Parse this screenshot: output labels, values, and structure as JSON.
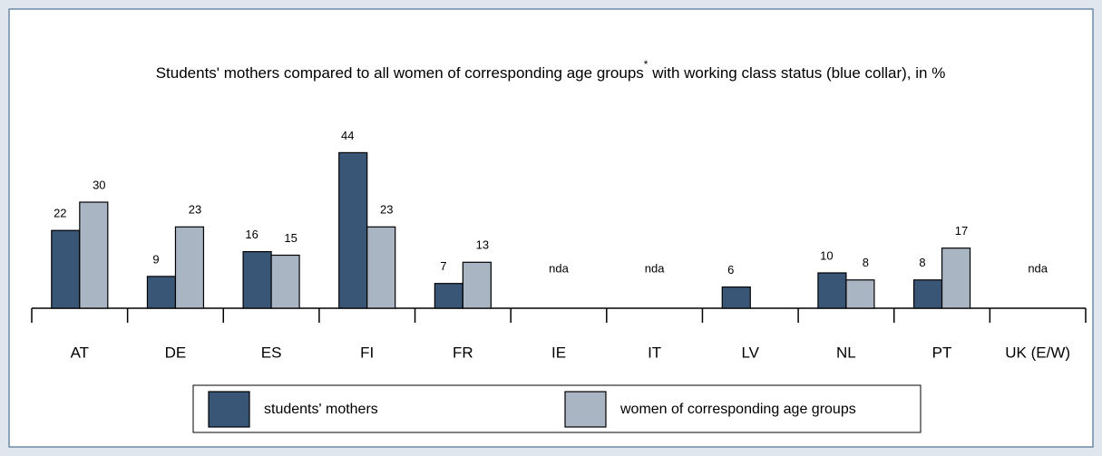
{
  "chart_data": {
    "type": "bar",
    "title": "Students' mothers compared to all women of corresponding age groups",
    "title_marker": "*",
    "title_end": " with working class status (blue collar), in %",
    "categories": [
      "AT",
      "DE",
      "ES",
      "FI",
      "FR",
      "IE",
      "IT",
      "LV",
      "NL",
      "PT",
      "UK (E/W)"
    ],
    "series": [
      {
        "name": "students' mothers",
        "color": "#3a5677",
        "values": [
          22,
          9,
          16,
          44,
          7,
          null,
          null,
          6,
          10,
          8,
          null
        ]
      },
      {
        "name": "women of corresponding age groups",
        "color": "#a9b5c2",
        "values": [
          30,
          23,
          15,
          23,
          13,
          null,
          null,
          null,
          8,
          17,
          null
        ]
      }
    ],
    "no_data_label": "nda",
    "ylim": [
      0,
      50
    ],
    "legend": "bottom"
  }
}
